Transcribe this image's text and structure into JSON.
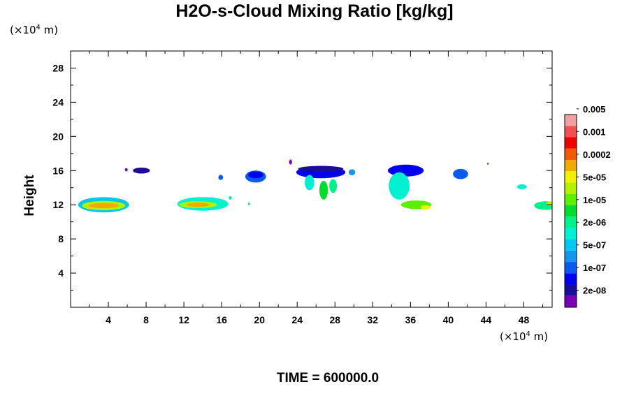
{
  "chart_data": {
    "type": "heatmap",
    "title": "H2O-s-Cloud Mixing Ratio [kg/kg]",
    "ylabel": "Height",
    "x_unit": {
      "prefix": "(×10",
      "exp": "4",
      "suffix": " m)"
    },
    "y_unit": {
      "prefix": "(×10",
      "exp": "4",
      "suffix": " m)"
    },
    "xlim": [
      0,
      51
    ],
    "ylim": [
      0,
      30
    ],
    "x_ticks": [
      4,
      8,
      12,
      16,
      20,
      24,
      28,
      32,
      36,
      40,
      44,
      48
    ],
    "y_ticks": [
      4,
      8,
      12,
      16,
      20,
      24,
      28
    ],
    "x_minor_step": 2,
    "y_minor_step": 2,
    "time_label": "TIME = 600000.0",
    "colorbar": {
      "colors": [
        "#7a00b4",
        "#1c0d96",
        "#0000f0",
        "#0a5af0",
        "#1496f0",
        "#00c8f0",
        "#00f0d2",
        "#00f08c",
        "#00dc2d",
        "#5af000",
        "#b4f000",
        "#f0f000",
        "#f0aa00",
        "#f05a00",
        "#f00000",
        "#f05050",
        "#f0a0a0"
      ],
      "labels": [
        "2e-08",
        "1e-07",
        "5e-07",
        "2e-06",
        "1e-05",
        "5e-05",
        "0.0002",
        "0.001",
        "0.005"
      ]
    },
    "cloud_regions": [
      {
        "x": 3.5,
        "y": 12.0,
        "rx": 2.7,
        "ry": 0.9,
        "level": 5
      },
      {
        "x": 3.5,
        "y": 11.9,
        "rx": 2.3,
        "ry": 0.55,
        "level": 10
      },
      {
        "x": 3.5,
        "y": 11.9,
        "rx": 1.6,
        "ry": 0.3,
        "level": 12
      },
      {
        "x": 14.0,
        "y": 12.1,
        "rx": 2.7,
        "ry": 0.8,
        "level": 6
      },
      {
        "x": 13.5,
        "y": 12.0,
        "rx": 2.0,
        "ry": 0.4,
        "level": 10
      },
      {
        "x": 13.5,
        "y": 12.0,
        "rx": 1.2,
        "ry": 0.25,
        "level": 12
      },
      {
        "x": 7.5,
        "y": 16.0,
        "rx": 0.9,
        "ry": 0.35,
        "level": 1
      },
      {
        "x": 5.9,
        "y": 16.1,
        "rx": 0.15,
        "ry": 0.2,
        "level": 0
      },
      {
        "x": 15.9,
        "y": 15.2,
        "rx": 0.25,
        "ry": 0.3,
        "level": 3
      },
      {
        "x": 19.6,
        "y": 15.3,
        "rx": 1.1,
        "ry": 0.7,
        "level": 3
      },
      {
        "x": 19.6,
        "y": 15.5,
        "rx": 0.8,
        "ry": 0.4,
        "level": 2
      },
      {
        "x": 23.3,
        "y": 17.0,
        "rx": 0.15,
        "ry": 0.3,
        "level": 0
      },
      {
        "x": 26.5,
        "y": 15.8,
        "rx": 2.6,
        "ry": 0.7,
        "level": 2
      },
      {
        "x": 26.5,
        "y": 16.2,
        "rx": 2.4,
        "ry": 0.35,
        "level": 1
      },
      {
        "x": 25.3,
        "y": 14.6,
        "rx": 0.5,
        "ry": 0.9,
        "level": 6
      },
      {
        "x": 26.8,
        "y": 13.7,
        "rx": 0.45,
        "ry": 1.1,
        "level": 8
      },
      {
        "x": 27.8,
        "y": 14.2,
        "rx": 0.4,
        "ry": 0.8,
        "level": 7
      },
      {
        "x": 29.8,
        "y": 15.8,
        "rx": 0.35,
        "ry": 0.35,
        "level": 4
      },
      {
        "x": 35.5,
        "y": 16.0,
        "rx": 1.9,
        "ry": 0.7,
        "level": 2
      },
      {
        "x": 34.8,
        "y": 14.2,
        "rx": 1.1,
        "ry": 1.6,
        "level": 6
      },
      {
        "x": 36.6,
        "y": 12.0,
        "rx": 1.6,
        "ry": 0.5,
        "level": 9
      },
      {
        "x": 37.6,
        "y": 11.7,
        "rx": 0.5,
        "ry": 0.25,
        "level": 11
      },
      {
        "x": 41.3,
        "y": 15.6,
        "rx": 0.8,
        "ry": 0.6,
        "level": 3
      },
      {
        "x": 44.2,
        "y": 16.8,
        "rx": 0.08,
        "ry": 0.1,
        "level": 1
      },
      {
        "x": 47.8,
        "y": 14.1,
        "rx": 0.5,
        "ry": 0.3,
        "level": 6
      },
      {
        "x": 50.3,
        "y": 11.9,
        "rx": 1.2,
        "ry": 0.5,
        "level": 7
      },
      {
        "x": 50.8,
        "y": 12.1,
        "rx": 0.5,
        "ry": 0.25,
        "level": 10
      },
      {
        "x": 18.9,
        "y": 12.1,
        "rx": 0.12,
        "ry": 0.15,
        "level": 7
      },
      {
        "x": 16.9,
        "y": 12.8,
        "rx": 0.15,
        "ry": 0.2,
        "level": 7
      }
    ]
  }
}
